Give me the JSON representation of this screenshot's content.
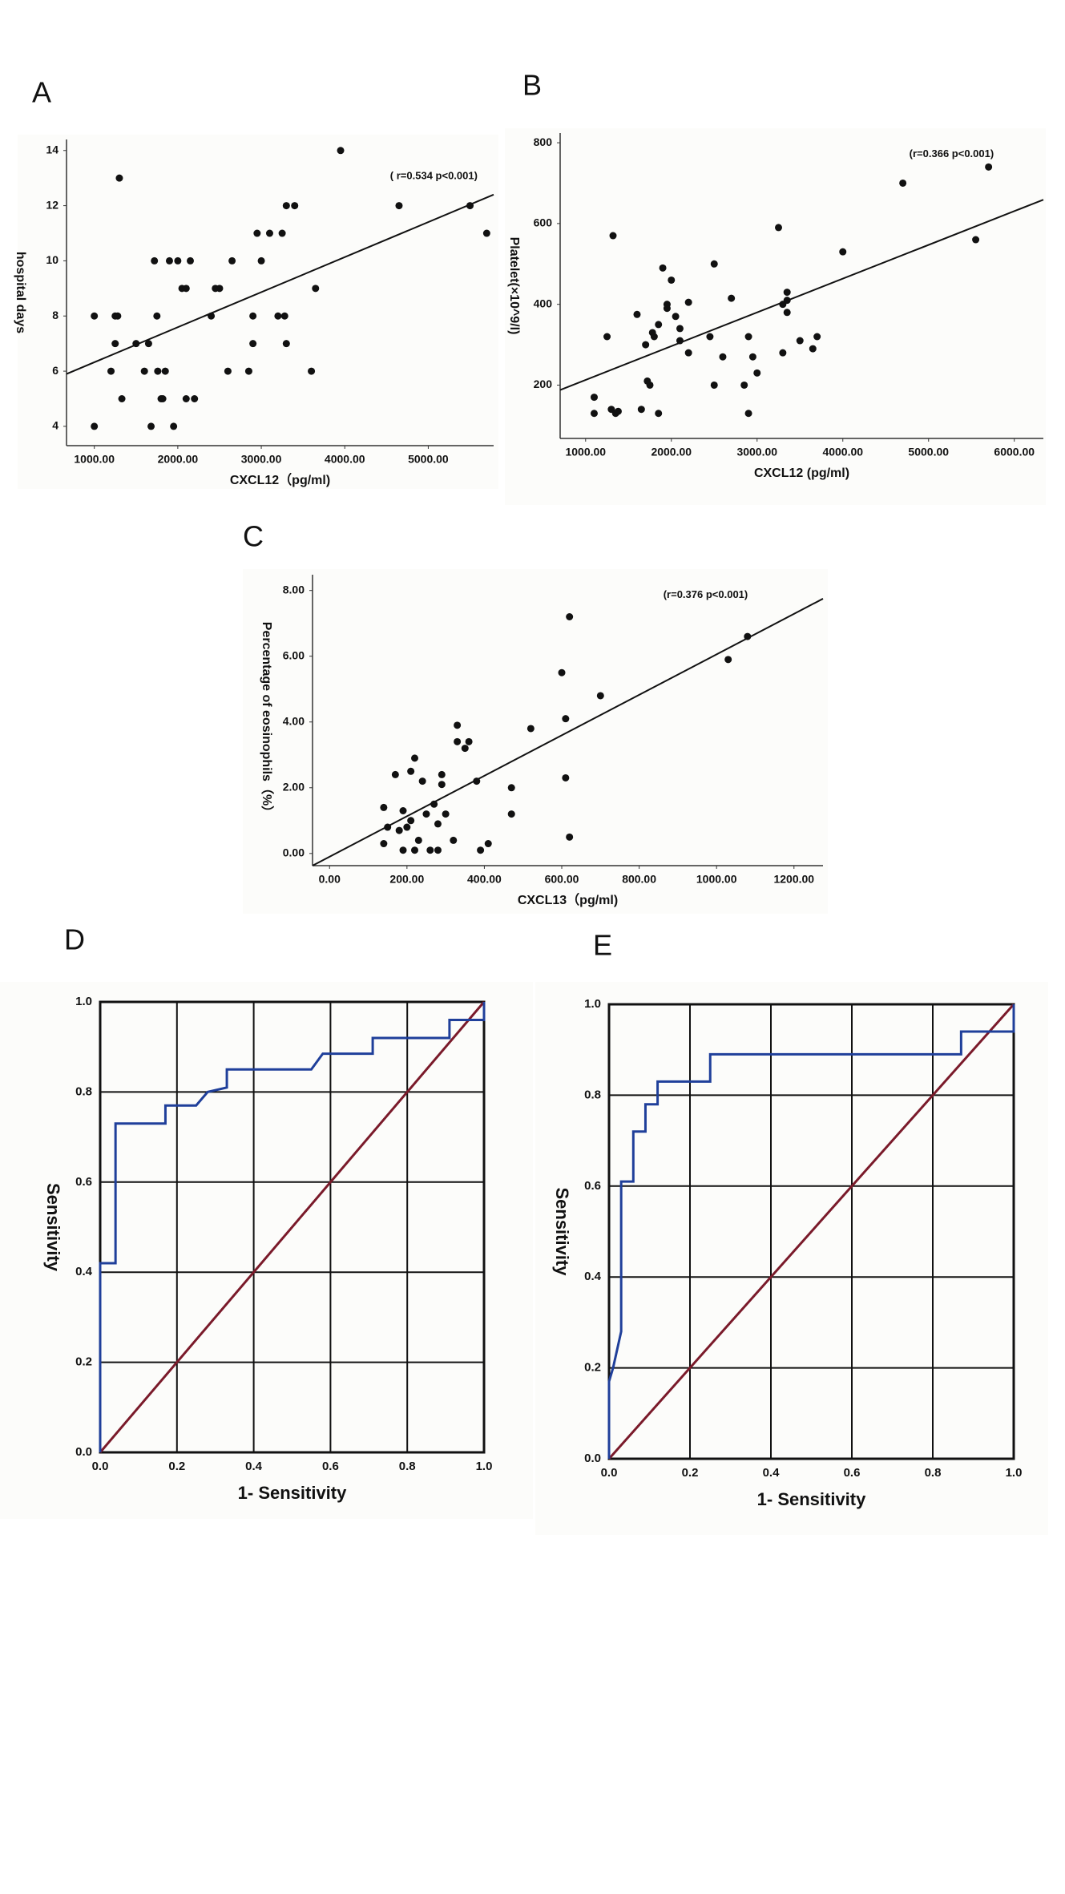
{
  "chart_data": [
    {
      "type": "scatter",
      "panel": "A",
      "ylabel": "hospital days",
      "xlabel": "CXCL12（pg/ml)",
      "annotation": "( r=0.534  p<0.001)",
      "xlim": [
        667,
        5783
      ],
      "ylim": [
        3.3,
        14.4
      ],
      "xticks": [
        {
          "value": 1000,
          "label": "1000.00"
        },
        {
          "value": 2000,
          "label": "2000.00"
        },
        {
          "value": 3000,
          "label": "3000.00"
        },
        {
          "value": 4000,
          "label": "4000.00"
        },
        {
          "value": 5000,
          "label": "5000.00"
        }
      ],
      "yticks": [
        4,
        6,
        8,
        10,
        12,
        14
      ],
      "color": "#111111",
      "line_color": "#111111",
      "x": [
        1000,
        1000,
        1200,
        1250,
        1280,
        1250,
        1300,
        1330,
        1500,
        1600,
        1650,
        1680,
        1720,
        1750,
        1760,
        1800,
        1820,
        1850,
        1900,
        1950,
        2000,
        2050,
        2100,
        2150,
        2100,
        2200,
        2400,
        2450,
        2500,
        2600,
        2650,
        2850,
        2900,
        2900,
        2950,
        3000,
        3100,
        3200,
        3250,
        3280,
        3300,
        3300,
        3400,
        3600,
        3650,
        3950,
        4650,
        5500,
        5700
      ],
      "y": [
        8,
        4,
        6,
        8,
        8,
        7,
        13,
        5,
        7,
        6,
        7,
        4,
        10,
        8,
        6,
        5,
        5,
        6,
        10,
        4,
        10,
        9,
        9,
        10,
        5,
        5,
        8,
        9,
        9,
        6,
        10,
        6,
        7,
        8,
        11,
        10,
        11,
        8,
        11,
        8,
        7,
        12,
        12,
        6,
        9,
        14,
        12,
        12,
        11
      ],
      "fit": {
        "x": [
          667,
          5783
        ],
        "y": [
          5.9,
          12.4
        ]
      }
    },
    {
      "type": "scatter",
      "panel": "B",
      "ylabel": "Platelet(×10^9/l)",
      "xlabel": "CXCL12 (pg/ml)",
      "annotation": "(r=0.366  p<0.001)",
      "xlim": [
        703,
        6339
      ],
      "ylim": [
        68,
        824
      ],
      "xticks": [
        {
          "value": 1000,
          "label": "1000.00"
        },
        {
          "value": 2000,
          "label": "2000.00"
        },
        {
          "value": 3000,
          "label": "3000.00"
        },
        {
          "value": 4000,
          "label": "4000.00"
        },
        {
          "value": 5000,
          "label": "5000.00"
        },
        {
          "value": 6000,
          "label": "6000.00"
        }
      ],
      "yticks": [
        200,
        400,
        600,
        800
      ],
      "color": "#111111",
      "line_color": "#111111",
      "x": [
        1100,
        1100,
        1250,
        1300,
        1320,
        1350,
        1380,
        1600,
        1650,
        1700,
        1720,
        1750,
        1780,
        1800,
        1850,
        1850,
        1900,
        1950,
        1950,
        2000,
        2050,
        2100,
        2100,
        2200,
        2200,
        2450,
        2500,
        2500,
        2600,
        2700,
        2850,
        2900,
        2900,
        2950,
        3000,
        3250,
        3300,
        3300,
        3350,
        3350,
        3350,
        3500,
        3650,
        3700,
        4000,
        4700,
        5550,
        5700
      ],
      "y": [
        170,
        130,
        320,
        140,
        570,
        130,
        135,
        375,
        140,
        300,
        210,
        200,
        330,
        320,
        130,
        350,
        490,
        400,
        390,
        460,
        370,
        340,
        310,
        280,
        405,
        320,
        500,
        200,
        270,
        415,
        200,
        320,
        130,
        270,
        230,
        590,
        400,
        280,
        410,
        430,
        380,
        310,
        290,
        320,
        530,
        700,
        560,
        740
      ],
      "fit": {
        "x": [
          703,
          6339
        ],
        "y": [
          188,
          659
        ]
      }
    },
    {
      "type": "scatter",
      "panel": "C",
      "ylabel": "Percentage of eosinophils（%）",
      "xlabel": "CXCL13（pg/ml)",
      "annotation": "(r=0.376  p<0.001)",
      "xlim": [
        -44,
        1275
      ],
      "ylim": [
        -0.37,
        8.48
      ],
      "xticks": [
        {
          "value": 0,
          "label": "0.00"
        },
        {
          "value": 200,
          "label": "200.00"
        },
        {
          "value": 400,
          "label": "400.00"
        },
        {
          "value": 600,
          "label": "600.00"
        },
        {
          "value": 800,
          "label": "800.00"
        },
        {
          "value": 1000,
          "label": "1000.00"
        },
        {
          "value": 1200,
          "label": "1200.00"
        }
      ],
      "yticks": [
        {
          "value": 0,
          "label": "0.00"
        },
        {
          "value": 2,
          "label": "2.00"
        },
        {
          "value": 4,
          "label": "4.00"
        },
        {
          "value": 6,
          "label": "6.00"
        },
        {
          "value": 8,
          "label": "8.00"
        }
      ],
      "color": "#111111",
      "line_color": "#111111",
      "x": [
        140,
        140,
        150,
        170,
        180,
        190,
        190,
        200,
        210,
        210,
        220,
        220,
        230,
        240,
        250,
        260,
        270,
        280,
        280,
        290,
        300,
        290,
        320,
        330,
        330,
        350,
        360,
        380,
        390,
        410,
        470,
        470,
        520,
        600,
        610,
        610,
        620,
        620,
        700,
        1030,
        1080
      ],
      "y": [
        1.4,
        0.3,
        0.8,
        2.4,
        0.7,
        1.3,
        0.1,
        0.8,
        2.5,
        1.0,
        2.9,
        0.1,
        0.4,
        2.2,
        1.2,
        0.1,
        1.5,
        0.9,
        0.1,
        2.4,
        1.2,
        2.1,
        0.4,
        3.9,
        3.4,
        3.2,
        3.4,
        2.2,
        0.1,
        0.3,
        2.0,
        1.2,
        3.8,
        5.5,
        2.3,
        4.1,
        7.2,
        0.5,
        4.8,
        5.9,
        6.6
      ],
      "fit": {
        "x": [
          -44,
          1275
        ],
        "y": [
          -0.37,
          7.75
        ]
      }
    },
    {
      "type": "line",
      "panel": "D",
      "ylabel": "Sensitivity",
      "xlabel": "1- Sensitivity",
      "grid": true,
      "xlim": [
        0,
        1
      ],
      "ylim": [
        0,
        1
      ],
      "xticks": [
        {
          "value": 0,
          "label": "0.0"
        },
        {
          "value": 0.2,
          "label": "0.2"
        },
        {
          "value": 0.4,
          "label": "0.4"
        },
        {
          "value": 0.6,
          "label": "0.6"
        },
        {
          "value": 0.8,
          "label": "0.8"
        },
        {
          "value": 1,
          "label": "1.0"
        }
      ],
      "yticks": [
        {
          "value": 0,
          "label": "0.0"
        },
        {
          "value": 0.2,
          "label": "0.2"
        },
        {
          "value": 0.4,
          "label": "0.4"
        },
        {
          "value": 0.6,
          "label": "0.6"
        },
        {
          "value": 0.8,
          "label": "0.8"
        },
        {
          "value": 1,
          "label": "1.0"
        }
      ],
      "series": [
        {
          "color": "#7a1a2a",
          "x": [
            0,
            1
          ],
          "values": [
            0,
            1
          ]
        },
        {
          "color": "#1f3f9a",
          "x": [
            0,
            0,
            0.04,
            0.04,
            0.17,
            0.17,
            0.25,
            0.28,
            0.33,
            0.33,
            0.55,
            0.58,
            0.71,
            0.71,
            0.91,
            0.91,
            1,
            1
          ],
          "values": [
            0,
            0.42,
            0.42,
            0.73,
            0.73,
            0.77,
            0.77,
            0.8,
            0.81,
            0.85,
            0.85,
            0.885,
            0.885,
            0.92,
            0.92,
            0.96,
            0.96,
            1
          ]
        }
      ]
    },
    {
      "type": "line",
      "panel": "E",
      "ylabel": "Sensitivity",
      "xlabel": "1- Sensitivity",
      "grid": true,
      "xlim": [
        0,
        1
      ],
      "ylim": [
        0,
        1
      ],
      "xticks": [
        {
          "value": 0,
          "label": "0.0"
        },
        {
          "value": 0.2,
          "label": "0.2"
        },
        {
          "value": 0.4,
          "label": "0.4"
        },
        {
          "value": 0.6,
          "label": "0.6"
        },
        {
          "value": 0.8,
          "label": "0.8"
        },
        {
          "value": 1,
          "label": "1.0"
        }
      ],
      "yticks": [
        {
          "value": 0,
          "label": "0.0"
        },
        {
          "value": 0.2,
          "label": "0.2"
        },
        {
          "value": 0.4,
          "label": "0.4"
        },
        {
          "value": 0.6,
          "label": "0.6"
        },
        {
          "value": 0.8,
          "label": "0.8"
        },
        {
          "value": 1,
          "label": "1.0"
        }
      ],
      "series": [
        {
          "color": "#7a1a2a",
          "x": [
            0,
            1
          ],
          "values": [
            0,
            1
          ]
        },
        {
          "color": "#1f3f9a",
          "x": [
            0,
            0,
            0.01,
            0.03,
            0.03,
            0.06,
            0.06,
            0.09,
            0.09,
            0.12,
            0.12,
            0.25,
            0.25,
            0.87,
            0.87,
            1,
            1
          ],
          "values": [
            0,
            0.17,
            0.2,
            0.28,
            0.61,
            0.61,
            0.72,
            0.72,
            0.78,
            0.78,
            0.83,
            0.83,
            0.89,
            0.89,
            0.94,
            0.94,
            1
          ]
        }
      ]
    }
  ]
}
